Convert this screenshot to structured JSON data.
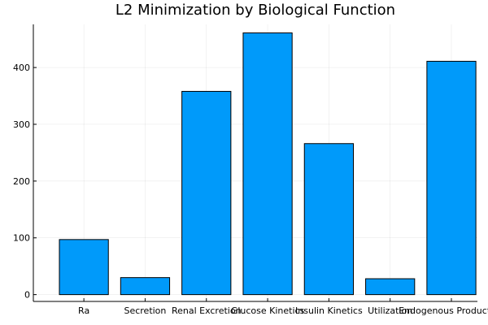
{
  "chart_data": {
    "type": "bar",
    "title": "L2 Minimization by Biological Function",
    "xlabel": "",
    "ylabel": "",
    "categories": [
      "Ra",
      "Secretion",
      "Renal Excretion",
      "Glucose Kinetics",
      "Insulin Kinetics",
      "Utilization",
      "Endogenous Production"
    ],
    "values": [
      97,
      30,
      358,
      461,
      266,
      28,
      411
    ],
    "ylim": [
      -12,
      476
    ],
    "yticks": [
      0,
      100,
      200,
      300,
      400
    ],
    "grid": true,
    "legend": "none",
    "colors": {
      "bar": "#009AFA",
      "bar_edge": "#000000",
      "axis": "#000000"
    }
  }
}
